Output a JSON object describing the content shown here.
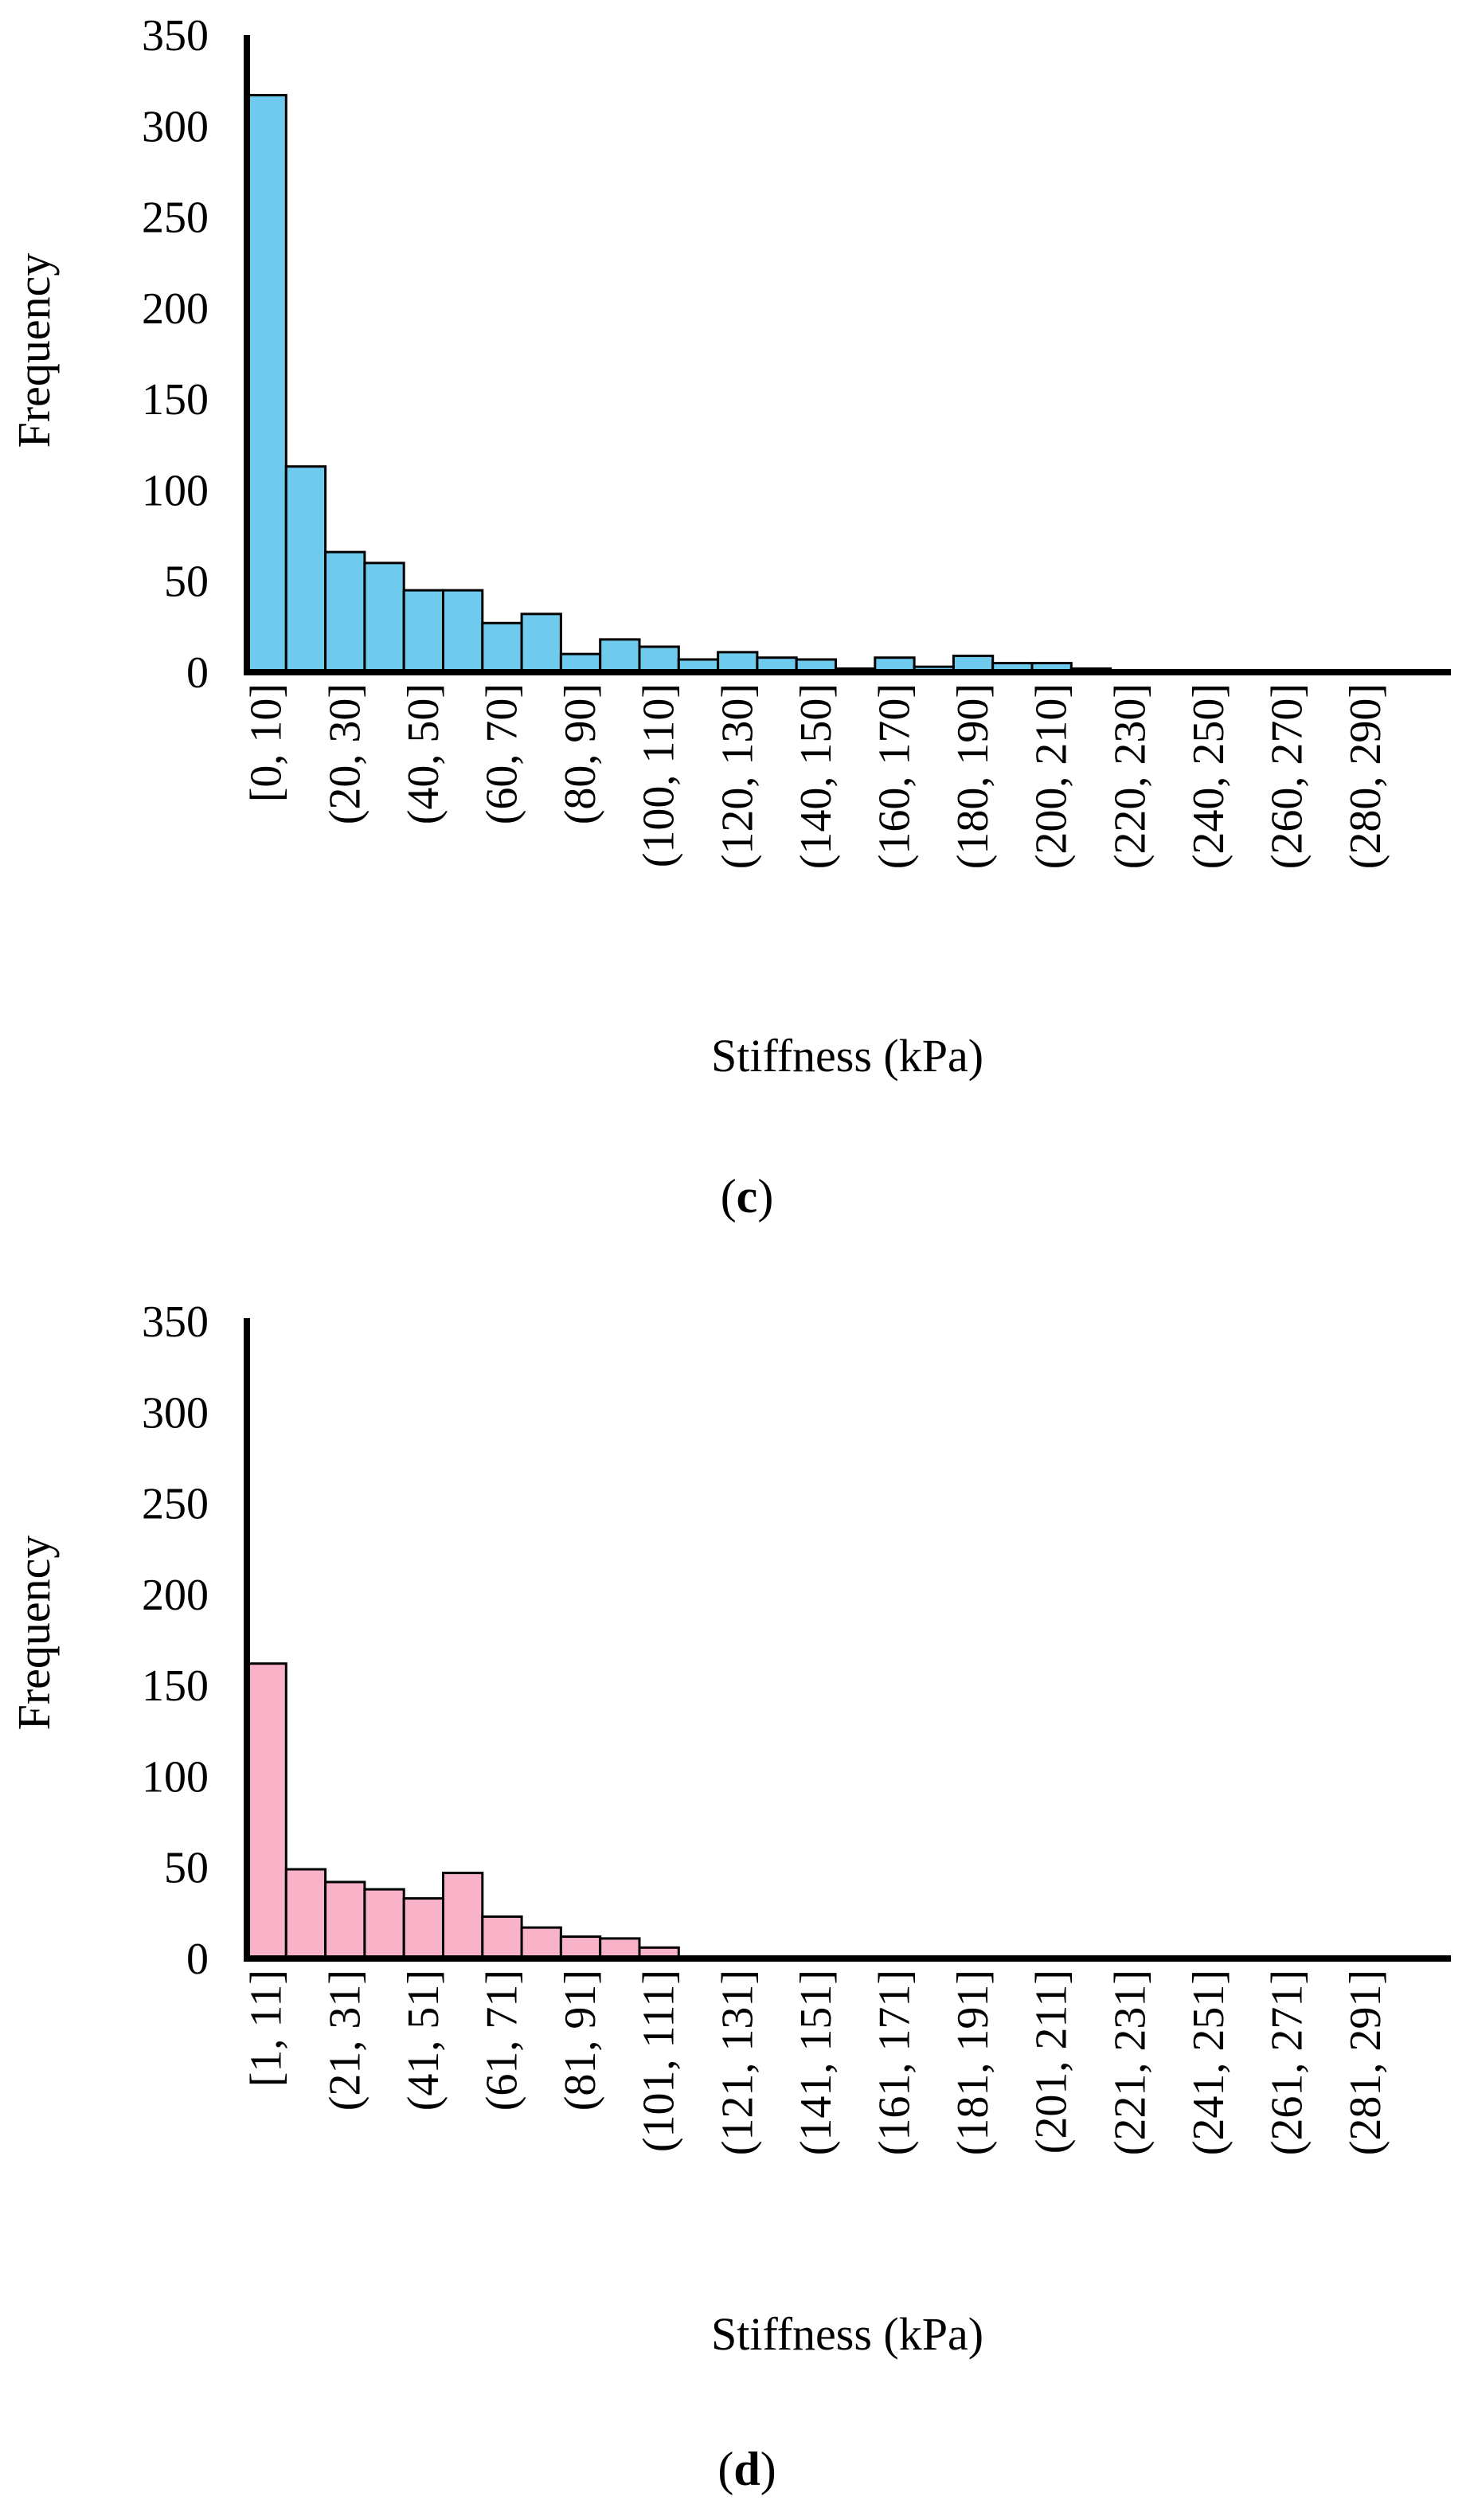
{
  "chart_data": [
    {
      "type": "bar",
      "panel_label": {
        "open": "(",
        "letter": "c",
        "close": ")"
      },
      "xlabel": "Stiffness (kPa)",
      "ylabel": "Frequency",
      "ylim": [
        0,
        350
      ],
      "yticks": [
        0,
        50,
        100,
        150,
        200,
        250,
        300,
        350
      ],
      "bar_color": "#6fcbee",
      "categories": [
        "[0, 10]",
        "(10, 20]",
        "(20, 30]",
        "(30, 40]",
        "(40, 50]",
        "(50, 60]",
        "(60, 70]",
        "(70, 80]",
        "(80, 90]",
        "(90, 100]",
        "(100, 110]",
        "(110, 120]",
        "(120, 130]",
        "(130, 140]",
        "(140, 150]",
        "(150, 160]",
        "(160, 170]",
        "(170, 180]",
        "(180, 190]",
        "(190, 200]",
        "(200, 210]",
        "(210, 220]",
        "(220, 230]",
        "(230, 240]",
        "(240, 250]",
        "(250, 260]",
        "(260, 270]",
        "(270, 280]",
        "(280, 290]",
        "(290, 300]"
      ],
      "shown_tick_labels": [
        "[0, 10]",
        "(20, 30]",
        "(40, 50]",
        "(60, 70]",
        "(80, 90]",
        "(100, 110]",
        "(120, 130]",
        "(140, 150]",
        "(160, 170]",
        "(180, 190]",
        "(200, 210]",
        "(220, 230]",
        "(240, 250]",
        "(260, 270]",
        "(280, 290]"
      ],
      "values": [
        317,
        113,
        66,
        60,
        45,
        45,
        27,
        32,
        10,
        18,
        14,
        7,
        11,
        8,
        7,
        2,
        8,
        3,
        9,
        5,
        5,
        2,
        1,
        1,
        1,
        1,
        1,
        1,
        1,
        1
      ]
    },
    {
      "type": "bar",
      "panel_label": {
        "open": "(",
        "letter": "d",
        "close": ")"
      },
      "xlabel": "Stiffness (kPa)",
      "ylabel": "Frequency",
      "ylim": [
        0,
        350
      ],
      "yticks": [
        0,
        50,
        100,
        150,
        200,
        250,
        300,
        350
      ],
      "bar_color": "#f9b3c8",
      "categories": [
        "[1, 11]",
        "(11, 21]",
        "(21, 31]",
        "(31, 41]",
        "(41, 51]",
        "(51, 61]",
        "(61, 71]",
        "(71, 81]",
        "(81, 91]",
        "(91, 101]",
        "(101, 111]",
        "(111, 121]",
        "(121, 131]",
        "(131, 141]",
        "(141, 151]",
        "(151, 161]",
        "(161, 171]",
        "(171, 181]",
        "(181, 191]",
        "(191, 201]",
        "(201, 211]",
        "(211, 221]",
        "(221, 231]",
        "(231, 241]",
        "(241, 251]",
        "(251, 261]",
        "(261, 271]",
        "(271, 281]",
        "(281, 291]",
        "(291, 301]"
      ],
      "shown_tick_labels": [
        "[1, 11]",
        "(21, 31]",
        "(41, 51]",
        "(61, 71]",
        "(81, 91]",
        "(101, 111]",
        "(121, 131]",
        "(141, 151]",
        "(161, 171]",
        "(181, 191]",
        "(201, 211]",
        "(221, 231]",
        "(241, 251]",
        "(261, 271]",
        "(281, 291]"
      ],
      "values": [
        162,
        49,
        42,
        38,
        33,
        47,
        23,
        17,
        12,
        11,
        6,
        0,
        0,
        0,
        0,
        0,
        0,
        0,
        0,
        0,
        0,
        0,
        0,
        0,
        0,
        0,
        0,
        0,
        0,
        0
      ]
    }
  ]
}
